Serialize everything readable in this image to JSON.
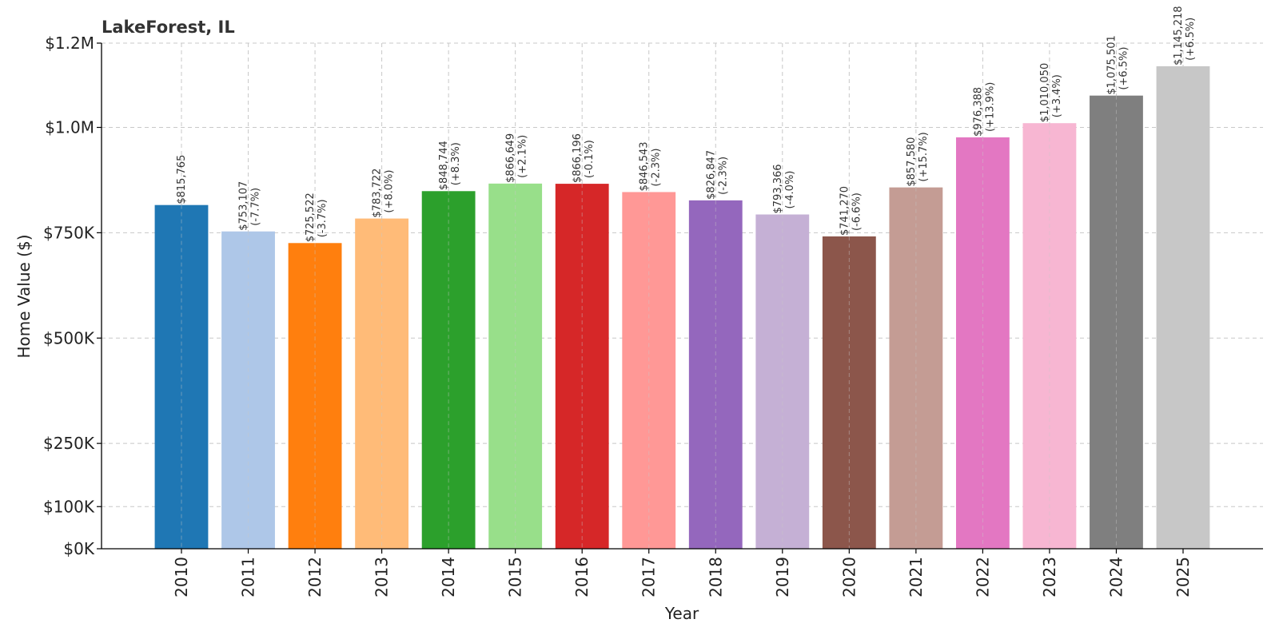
{
  "chart_data": {
    "type": "bar",
    "title": "LakeForest, IL",
    "xlabel": "Year",
    "ylabel": "Home Value ($)",
    "categories": [
      "2010",
      "2011",
      "2012",
      "2013",
      "2014",
      "2015",
      "2016",
      "2017",
      "2018",
      "2019",
      "2020",
      "2021",
      "2022",
      "2023",
      "2024",
      "2025"
    ],
    "values": [
      815765,
      753107,
      725522,
      783722,
      848744,
      866649,
      866196,
      846543,
      826847,
      793366,
      741270,
      857580,
      976388,
      1010050,
      1075501,
      1145218
    ],
    "value_labels": [
      "$815,765",
      "$753,107",
      "$725,522",
      "$783,722",
      "$848,744",
      "$866,649",
      "$866,196",
      "$846,543",
      "$826,847",
      "$793,366",
      "$741,270",
      "$857,580",
      "$976,388",
      "$1,010,050",
      "$1,075,501",
      "$1,145,218"
    ],
    "change_labels": [
      "",
      "(-7.7%)",
      "(-3.7%)",
      "(+8.0%)",
      "(+8.3%)",
      "(+2.1%)",
      "(-0.1%)",
      "(-2.3%)",
      "(-2.3%)",
      "(-4.0%)",
      "(-6.6%)",
      "(+15.7%)",
      "(+13.9%)",
      "(+3.4%)",
      "(+6.5%)",
      "(+6.5%)"
    ],
    "colors": [
      "#1f77b4",
      "#aec7e8",
      "#ff7f0e",
      "#ffbb78",
      "#2ca02c",
      "#98df8a",
      "#d62728",
      "#ff9896",
      "#9467bd",
      "#c5b0d5",
      "#8c564b",
      "#c49c94",
      "#e377c2",
      "#f7b6d2",
      "#7f7f7f",
      "#c7c7c7"
    ],
    "yticks": [
      0,
      100000,
      250000,
      500000,
      750000,
      1000000,
      1200000
    ],
    "ytick_labels": [
      "$0K",
      "$100K",
      "$250K",
      "$500K",
      "$750K",
      "$1.0M",
      "$1.2M"
    ],
    "ylim": [
      0,
      1200000
    ],
    "grid": true,
    "legend": "none"
  }
}
